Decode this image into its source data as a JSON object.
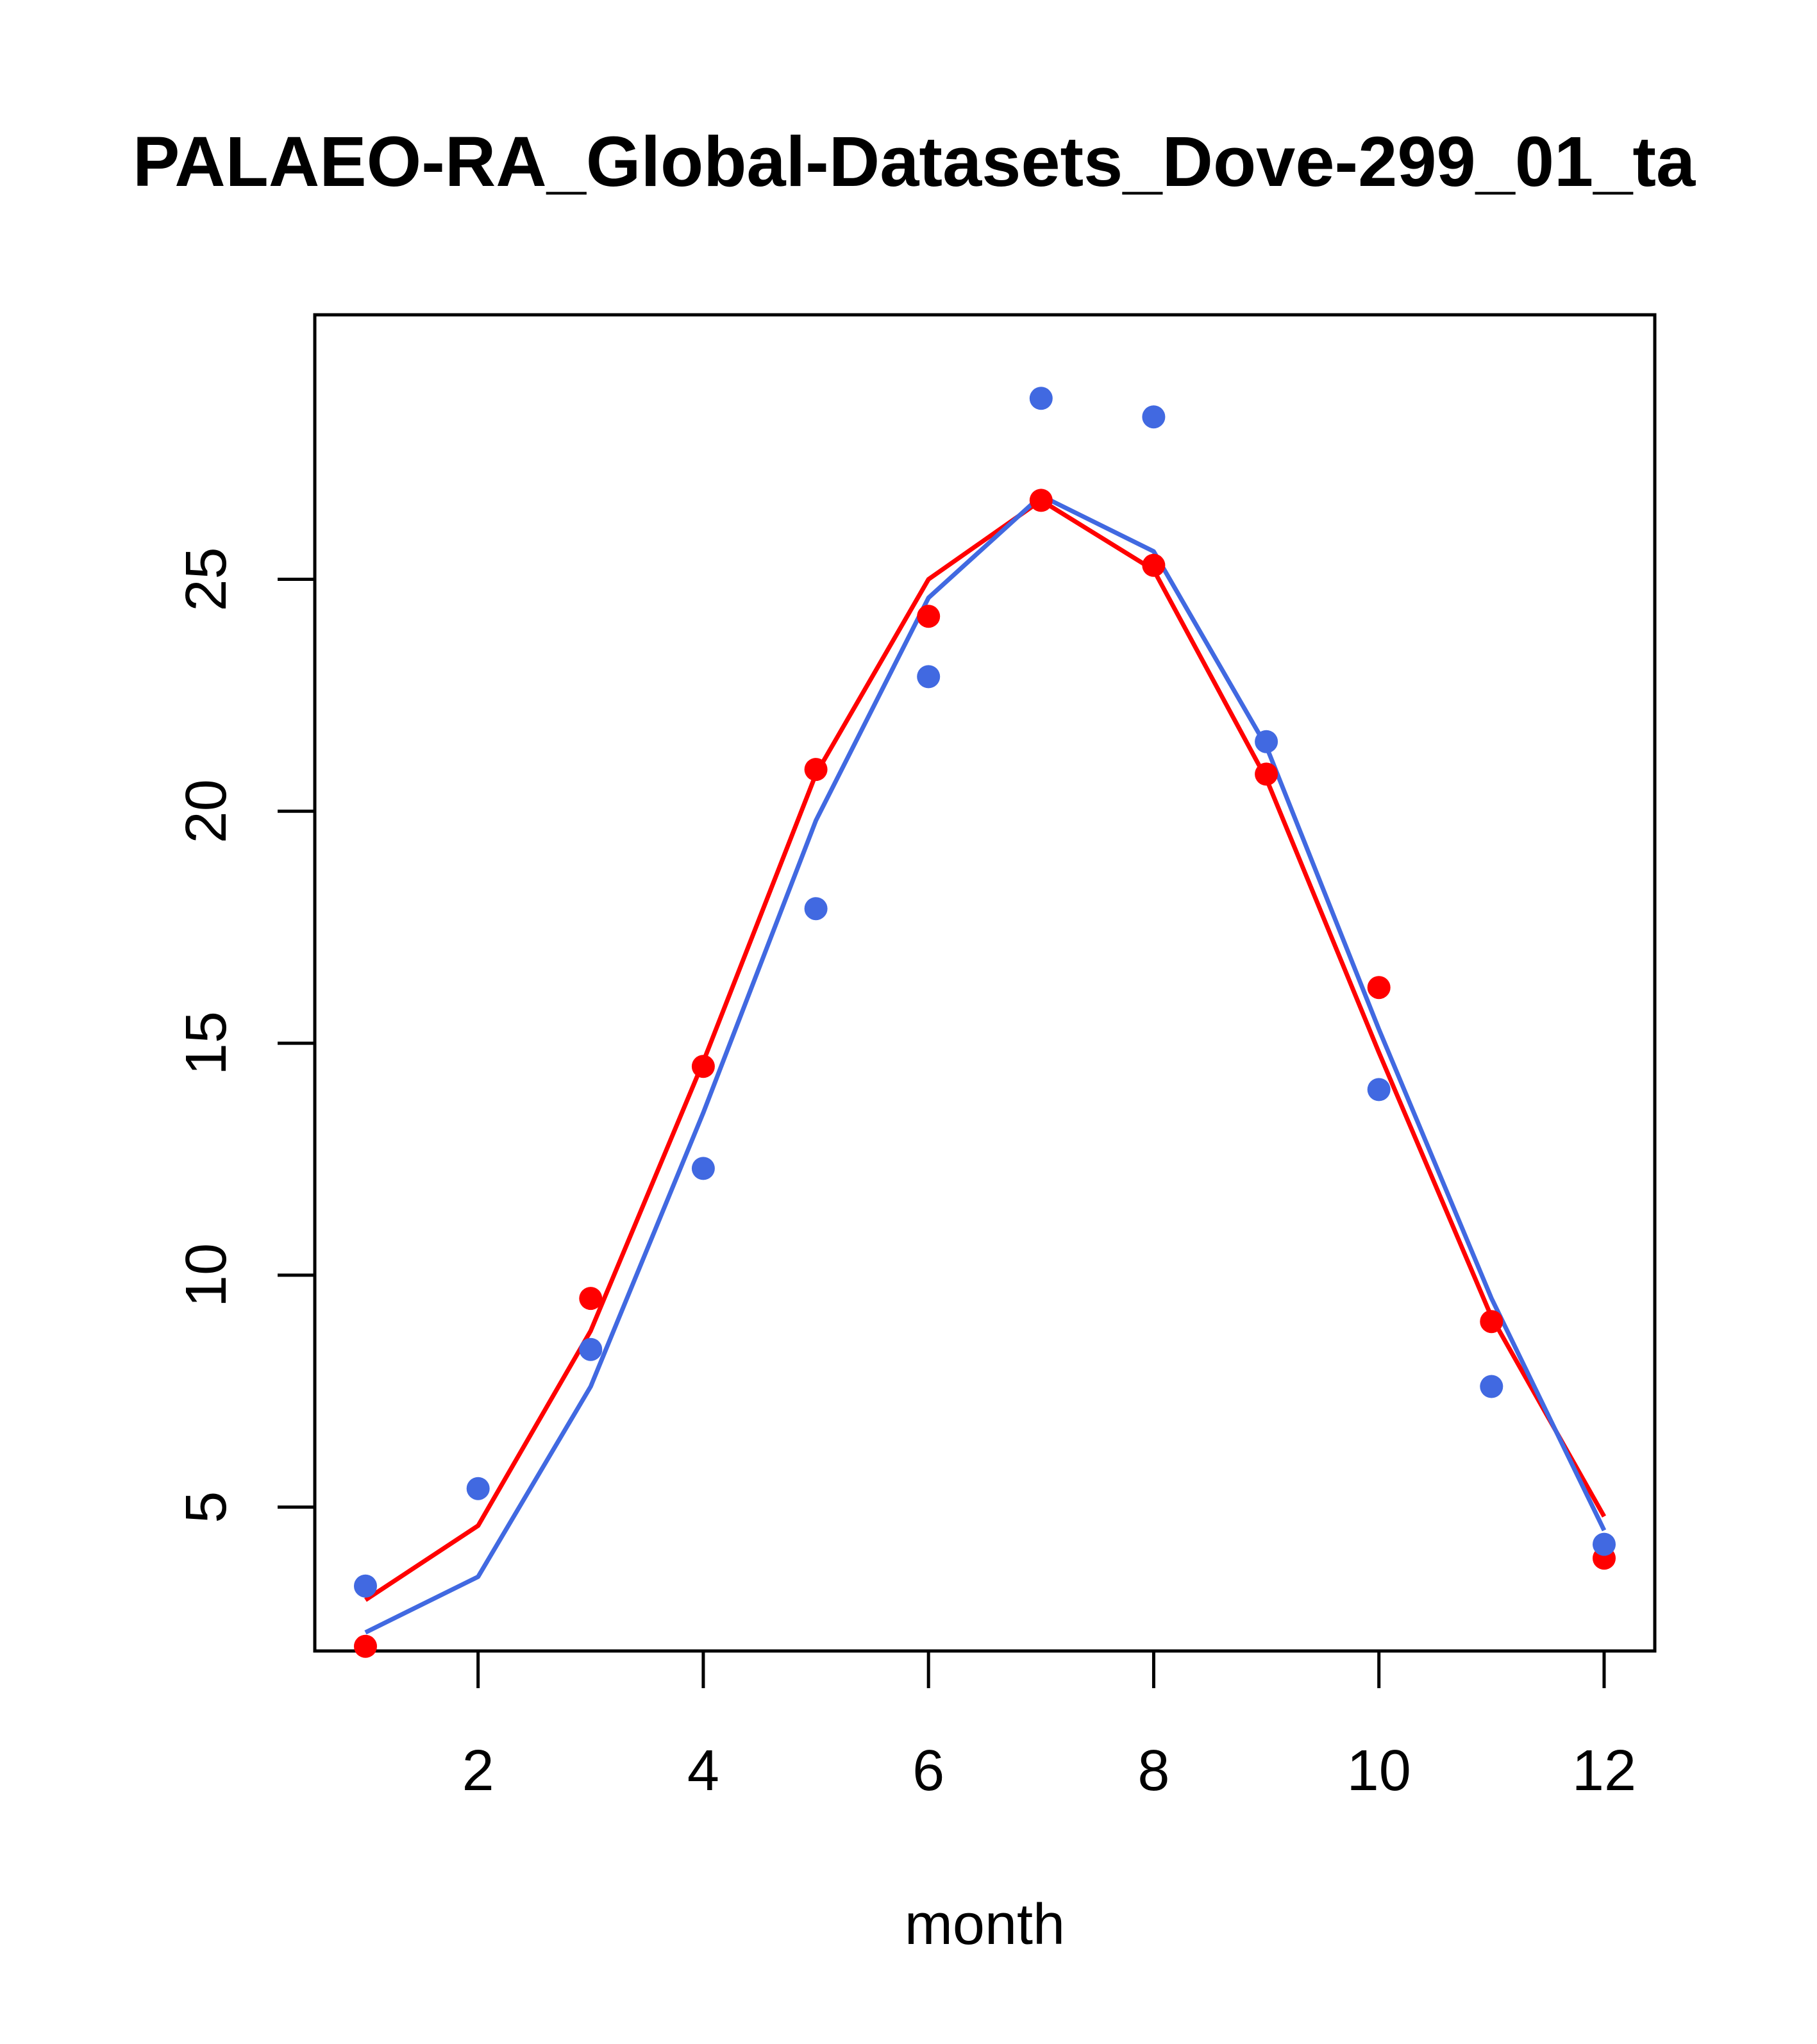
{
  "chart_data": {
    "type": "line",
    "title": "PALAEO-RA_Global-Datasets_Dove-299_01_ta",
    "xlabel": "month",
    "ylabel": "",
    "xlim": [
      0.55,
      12.45
    ],
    "ylim": [
      1.9,
      30.7
    ],
    "x_ticks": [
      2,
      4,
      6,
      8,
      10,
      12
    ],
    "y_ticks": [
      5,
      10,
      15,
      20,
      25
    ],
    "grid": false,
    "legend": "none",
    "x": [
      1,
      2,
      3,
      4,
      5,
      6,
      7,
      8,
      9,
      10,
      11,
      12
    ],
    "series": [
      {
        "color": "#ff0000",
        "line_values": [
          3.0,
          4.6,
          8.8,
          14.6,
          20.8,
          25.0,
          26.7,
          25.2,
          20.7,
          14.8,
          9.1,
          4.8
        ],
        "point_values": [
          2.0,
          null,
          9.5,
          14.5,
          20.9,
          24.2,
          26.7,
          25.3,
          20.8,
          16.2,
          9.0,
          3.9
        ]
      },
      {
        "color": "#4169e1",
        "line_values": [
          2.3,
          3.5,
          7.6,
          13.5,
          19.8,
          24.6,
          26.8,
          25.6,
          21.4,
          15.3,
          9.5,
          4.5
        ],
        "point_values": [
          3.3,
          5.4,
          8.4,
          12.3,
          17.9,
          22.9,
          28.9,
          28.5,
          21.5,
          14.0,
          7.6,
          4.2
        ]
      }
    ]
  }
}
